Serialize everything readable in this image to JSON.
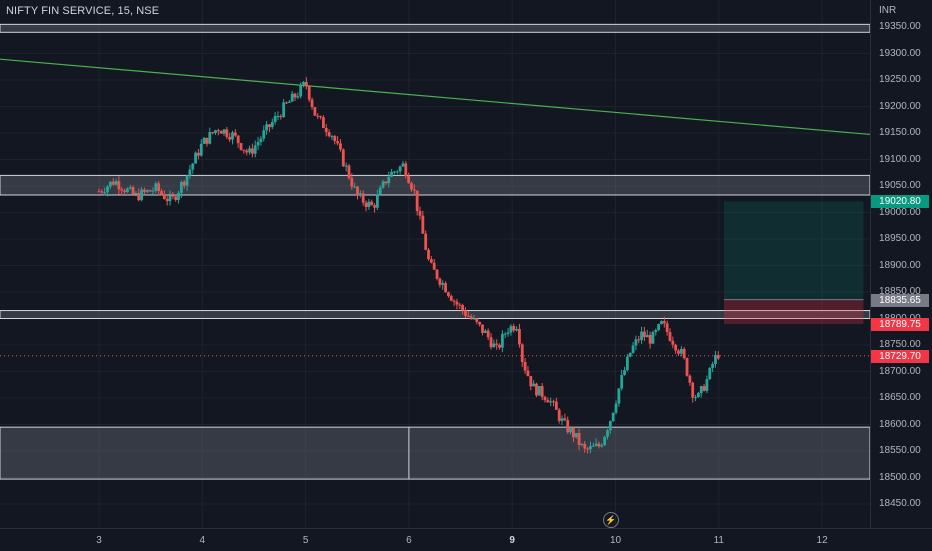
{
  "header": {
    "title": "NIFTY FIN SERVICE, 15, NSE"
  },
  "price_axis": {
    "currency": "INR",
    "ticks": [
      "19350.00",
      "19300.00",
      "19250.00",
      "19200.00",
      "19150.00",
      "19100.00",
      "19050.00",
      "19000.00",
      "18950.00",
      "18900.00",
      "18850.00",
      "18800.00",
      "18750.00",
      "18700.00",
      "18650.00",
      "18600.00",
      "18550.00",
      "18500.00",
      "18450.00"
    ]
  },
  "time_axis": {
    "ticks": [
      "3",
      "4",
      "5",
      "6",
      "9",
      "10",
      "11",
      "12"
    ],
    "bold_tick": "9"
  },
  "badges": {
    "target": {
      "label": "19020.80",
      "color": "#089981"
    },
    "entry": {
      "label": "18835.65",
      "color": "#787b86"
    },
    "stop": {
      "label": "18789.75",
      "color": "#f23645"
    },
    "last": {
      "label": "18729.70",
      "color": "#f23645"
    }
  },
  "icons": {
    "replay": "lightning-icon"
  },
  "colors": {
    "background": "#131722",
    "up": "#26a69a",
    "down": "#ef5350",
    "trendline": "#4caf50",
    "zone": "#787b86",
    "profit": "#089981",
    "loss": "#f23645"
  },
  "chart_data": {
    "type": "candlestick",
    "symbol": "NIFTY FIN SERVICE",
    "interval": "15",
    "exchange": "NSE",
    "ylim": [
      18450,
      19350
    ],
    "x_ticks": [
      "3",
      "4",
      "5",
      "6",
      "9",
      "10",
      "11",
      "12"
    ],
    "close_path": [
      [
        0,
        19040
      ],
      [
        0.15,
        19060
      ],
      [
        0.35,
        19030
      ],
      [
        0.55,
        19045
      ],
      [
        0.7,
        19020
      ],
      [
        0.85,
        19070
      ],
      [
        1.0,
        19130
      ],
      [
        1.15,
        19160
      ],
      [
        1.3,
        19145
      ],
      [
        1.45,
        19110
      ],
      [
        1.6,
        19150
      ],
      [
        1.8,
        19200
      ],
      [
        1.95,
        19230
      ],
      [
        2.0,
        19245
      ],
      [
        2.1,
        19180
      ],
      [
        2.25,
        19150
      ],
      [
        2.4,
        19080
      ],
      [
        2.5,
        19030
      ],
      [
        2.65,
        19010
      ],
      [
        2.8,
        19070
      ],
      [
        2.95,
        19090
      ],
      [
        3.05,
        19040
      ],
      [
        3.1,
        18990
      ],
      [
        3.2,
        18900
      ],
      [
        3.35,
        18860
      ],
      [
        3.45,
        18830
      ],
      [
        3.6,
        18800
      ],
      [
        3.75,
        18770
      ],
      [
        3.85,
        18740
      ],
      [
        3.95,
        18780
      ],
      [
        4.05,
        18790
      ],
      [
        4.1,
        18720
      ],
      [
        4.2,
        18670
      ],
      [
        4.35,
        18650
      ],
      [
        4.5,
        18600
      ],
      [
        4.6,
        18580
      ],
      [
        4.7,
        18550
      ],
      [
        4.85,
        18560
      ],
      [
        4.95,
        18610
      ],
      [
        5.05,
        18680
      ],
      [
        5.15,
        18740
      ],
      [
        5.25,
        18770
      ],
      [
        5.35,
        18760
      ],
      [
        5.45,
        18790
      ],
      [
        5.55,
        18760
      ],
      [
        5.65,
        18730
      ],
      [
        5.75,
        18660
      ],
      [
        5.8,
        18650
      ],
      [
        5.9,
        18690
      ],
      [
        5.95,
        18720
      ],
      [
        6.0,
        18735
      ]
    ],
    "last_price": 18729.7,
    "horizontal_zones": [
      {
        "low": 19340,
        "high": 19355
      },
      {
        "low": 19033,
        "high": 19070
      },
      {
        "low": 18800,
        "high": 18815
      },
      {
        "low": 18497,
        "high": 18595
      }
    ],
    "trendline": {
      "start": [
        -1,
        19290
      ],
      "end": [
        7.6,
        19145
      ]
    },
    "long_position": {
      "entry": 18835.65,
      "target": 19020.8,
      "stop": 18789.75,
      "x_start": 6.05,
      "x_end": 7.4
    }
  }
}
